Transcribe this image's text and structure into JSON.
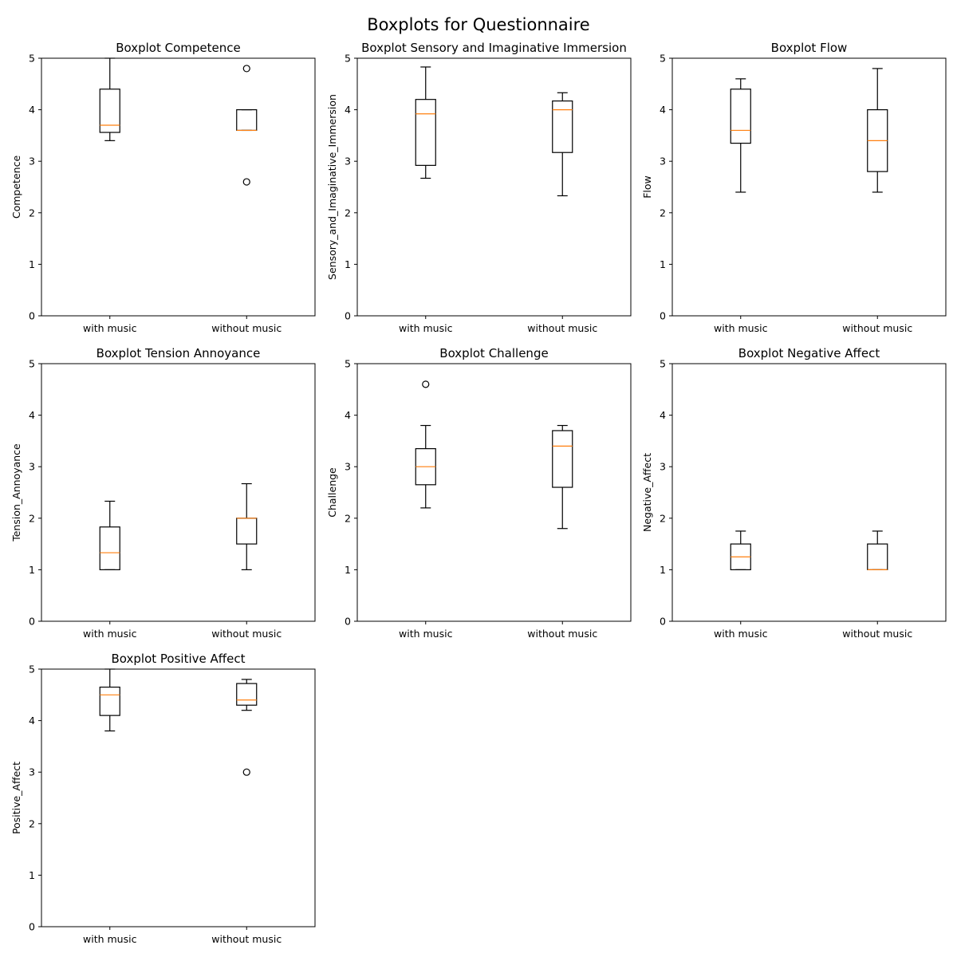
{
  "figure": {
    "title": "Boxplots for Questionnaire"
  },
  "colors": {
    "box": "#000000",
    "median": "#ff7f0e",
    "axes": "#000000",
    "background": "#ffffff"
  },
  "chart_data": [
    {
      "type": "boxplot",
      "title": "Boxplot Competence",
      "ylabel": "Competence",
      "xlabel": "",
      "ylim": [
        0,
        5
      ],
      "yticks": [
        0,
        1,
        2,
        3,
        4,
        5
      ],
      "categories": [
        "with music",
        "without music"
      ],
      "boxes": [
        {
          "category": "with music",
          "whislo": 3.4,
          "q1": 3.56,
          "med": 3.7,
          "q3": 4.4,
          "whishi": 5.0,
          "fliers": []
        },
        {
          "category": "without music",
          "whislo": 3.6,
          "q1": 3.6,
          "med": 3.6,
          "q3": 4.0,
          "whishi": 4.0,
          "fliers": [
            4.8,
            2.6
          ]
        }
      ]
    },
    {
      "type": "boxplot",
      "title": "Boxplot Sensory and Imaginative Immersion",
      "ylabel": "Sensory_and_Imaginative_Immersion",
      "xlabel": "",
      "ylim": [
        0,
        5
      ],
      "yticks": [
        0,
        1,
        2,
        3,
        4,
        5
      ],
      "categories": [
        "with music",
        "without music"
      ],
      "boxes": [
        {
          "category": "with music",
          "whislo": 2.67,
          "q1": 2.92,
          "med": 3.92,
          "q3": 4.2,
          "whishi": 4.83,
          "fliers": []
        },
        {
          "category": "without music",
          "whislo": 2.33,
          "q1": 3.17,
          "med": 4.0,
          "q3": 4.17,
          "whishi": 4.33,
          "fliers": []
        }
      ]
    },
    {
      "type": "boxplot",
      "title": "Boxplot Flow",
      "ylabel": "Flow",
      "xlabel": "",
      "ylim": [
        0,
        5
      ],
      "yticks": [
        0,
        1,
        2,
        3,
        4,
        5
      ],
      "categories": [
        "with music",
        "without music"
      ],
      "boxes": [
        {
          "category": "with music",
          "whislo": 2.4,
          "q1": 3.35,
          "med": 3.6,
          "q3": 4.4,
          "whishi": 4.6,
          "fliers": []
        },
        {
          "category": "without music",
          "whislo": 2.4,
          "q1": 2.8,
          "med": 3.4,
          "q3": 4.0,
          "whishi": 4.8,
          "fliers": []
        }
      ]
    },
    {
      "type": "boxplot",
      "title": "Boxplot Tension Annoyance",
      "ylabel": "Tension_Annoyance",
      "xlabel": "",
      "ylim": [
        0,
        5
      ],
      "yticks": [
        0,
        1,
        2,
        3,
        4,
        5
      ],
      "categories": [
        "with music",
        "without music"
      ],
      "boxes": [
        {
          "category": "with music",
          "whislo": 1.0,
          "q1": 1.0,
          "med": 1.33,
          "q3": 1.83,
          "whishi": 2.33,
          "fliers": []
        },
        {
          "category": "without music",
          "whislo": 1.0,
          "q1": 1.5,
          "med": 2.0,
          "q3": 2.0,
          "whishi": 2.67,
          "fliers": []
        }
      ]
    },
    {
      "type": "boxplot",
      "title": "Boxplot Challenge",
      "ylabel": "Challenge",
      "xlabel": "",
      "ylim": [
        0,
        5
      ],
      "yticks": [
        0,
        1,
        2,
        3,
        4,
        5
      ],
      "categories": [
        "with music",
        "without music"
      ],
      "boxes": [
        {
          "category": "with music",
          "whislo": 2.2,
          "q1": 2.65,
          "med": 3.0,
          "q3": 3.35,
          "whishi": 3.8,
          "fliers": [
            4.6
          ]
        },
        {
          "category": "without music",
          "whislo": 1.8,
          "q1": 2.6,
          "med": 3.4,
          "q3": 3.7,
          "whishi": 3.8,
          "fliers": []
        }
      ]
    },
    {
      "type": "boxplot",
      "title": "Boxplot Negative Affect",
      "ylabel": "Negative_Affect",
      "xlabel": "",
      "ylim": [
        0,
        5
      ],
      "yticks": [
        0,
        1,
        2,
        3,
        4,
        5
      ],
      "categories": [
        "with music",
        "without music"
      ],
      "boxes": [
        {
          "category": "with music",
          "whislo": 1.0,
          "q1": 1.0,
          "med": 1.25,
          "q3": 1.5,
          "whishi": 1.75,
          "fliers": []
        },
        {
          "category": "without music",
          "whislo": 1.0,
          "q1": 1.0,
          "med": 1.0,
          "q3": 1.5,
          "whishi": 1.75,
          "fliers": []
        }
      ]
    },
    {
      "type": "boxplot",
      "title": "Boxplot Positive Affect",
      "ylabel": "Positive_Affect",
      "xlabel": "",
      "ylim": [
        0,
        5
      ],
      "yticks": [
        0,
        1,
        2,
        3,
        4,
        5
      ],
      "categories": [
        "with music",
        "without music"
      ],
      "boxes": [
        {
          "category": "with music",
          "whislo": 3.8,
          "q1": 4.1,
          "med": 4.5,
          "q3": 4.65,
          "whishi": 5.0,
          "fliers": []
        },
        {
          "category": "without music",
          "whislo": 4.2,
          "q1": 4.3,
          "med": 4.4,
          "q3": 4.72,
          "whishi": 4.8,
          "fliers": [
            3.0
          ]
        }
      ]
    }
  ]
}
